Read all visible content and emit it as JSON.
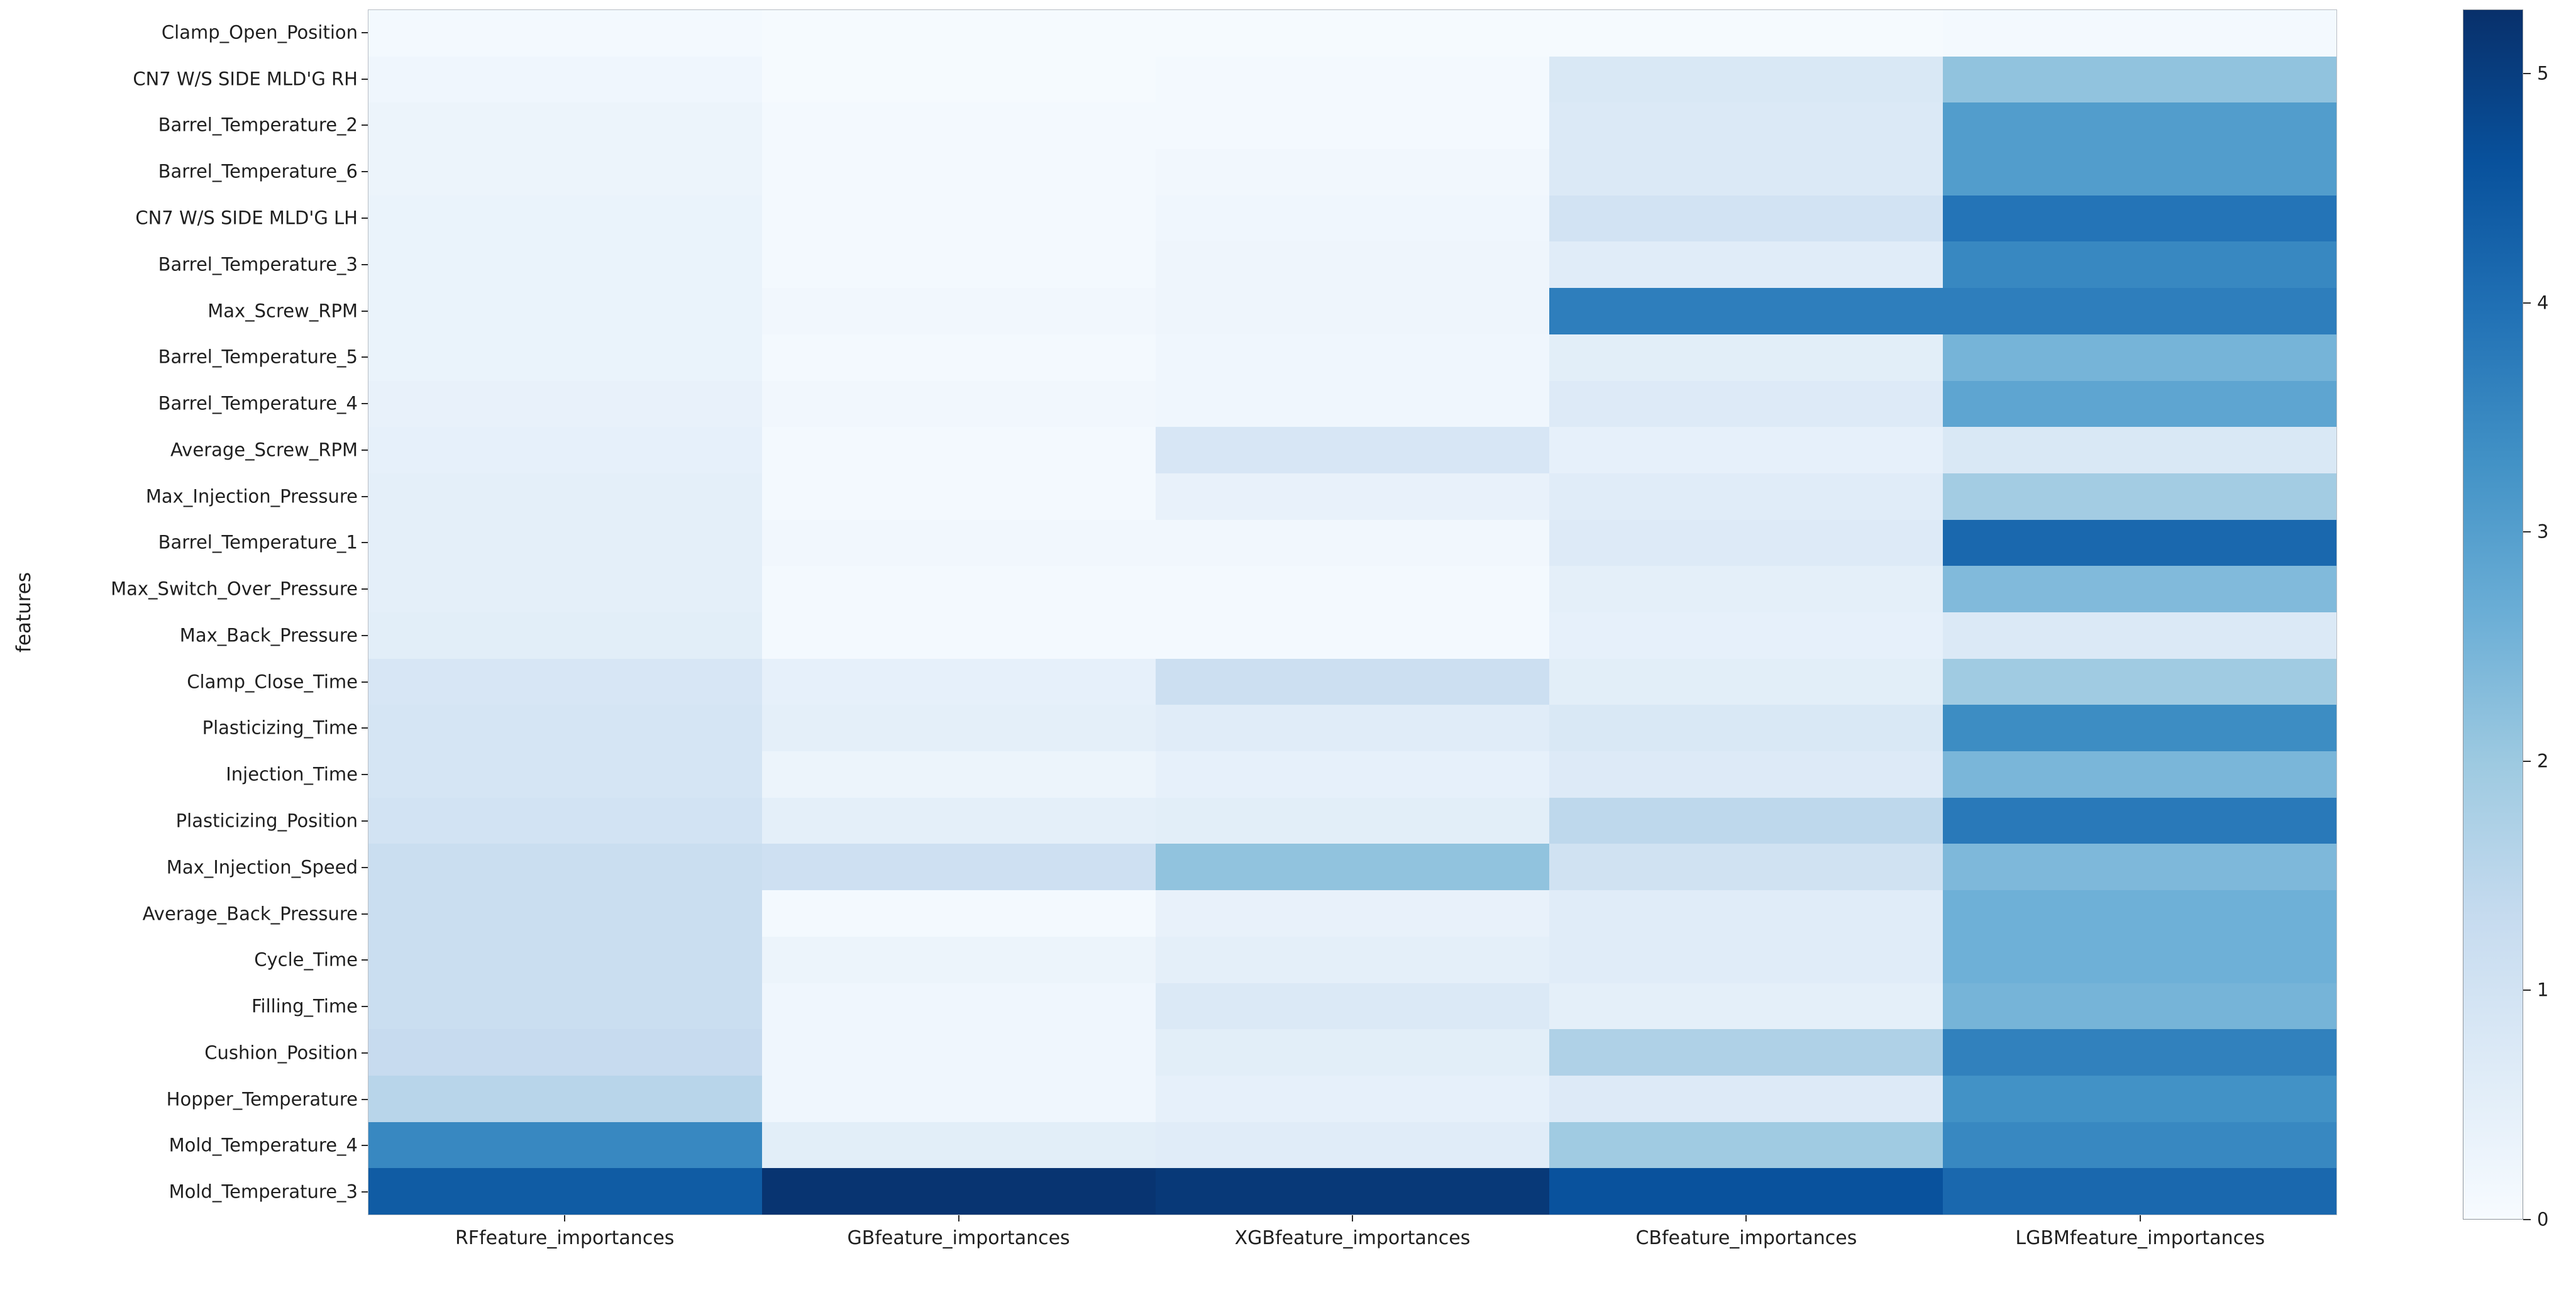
{
  "figure": {
    "background_color": "#ffffff",
    "text_color": "#1f1f1f"
  },
  "chart_data": {
    "type": "heatmap",
    "title": "",
    "xlabel": "",
    "ylabel": "features",
    "columns": [
      "RFfeature_importances",
      "GBfeature_importances",
      "XGBfeature_importances",
      "CBfeature_importances",
      "LGBMfeature_importances"
    ],
    "rows": [
      "Clamp_Open_Position",
      "CN7 W/S SIDE MLD'G RH",
      "Barrel_Temperature_2",
      "Barrel_Temperature_6",
      "CN7 W/S SIDE MLD'G LH",
      "Barrel_Temperature_3",
      "Max_Screw_RPM",
      "Barrel_Temperature_5",
      "Barrel_Temperature_4",
      "Average_Screw_RPM",
      "Max_Injection_Pressure",
      "Barrel_Temperature_1",
      "Max_Switch_Over_Pressure",
      "Max_Back_Pressure",
      "Clamp_Close_Time",
      "Plasticizing_Time",
      "Injection_Time",
      "Plasticizing_Position",
      "Max_Injection_Speed",
      "Average_Back_Pressure",
      "Cycle_Time",
      "Filling_Time",
      "Cushion_Position",
      "Hopper_Temperature",
      "Mold_Temperature_4",
      "Mold_Temperature_3"
    ],
    "values": [
      [
        0.1,
        0.05,
        0.05,
        0.05,
        0.1
      ],
      [
        0.2,
        0.05,
        0.1,
        0.8,
        2.15
      ],
      [
        0.3,
        0.1,
        0.1,
        0.75,
        3.05
      ],
      [
        0.3,
        0.1,
        0.15,
        0.75,
        3.05
      ],
      [
        0.35,
        0.1,
        0.2,
        1.0,
        3.9
      ],
      [
        0.35,
        0.1,
        0.25,
        0.6,
        3.5
      ],
      [
        0.35,
        0.15,
        0.25,
        3.7,
        3.7
      ],
      [
        0.35,
        0.1,
        0.2,
        0.55,
        2.5
      ],
      [
        0.4,
        0.15,
        0.2,
        0.7,
        2.85
      ],
      [
        0.45,
        0.1,
        0.85,
        0.45,
        0.8
      ],
      [
        0.5,
        0.1,
        0.4,
        0.6,
        1.9
      ],
      [
        0.5,
        0.15,
        0.15,
        0.7,
        4.15
      ],
      [
        0.5,
        0.1,
        0.1,
        0.5,
        2.35
      ],
      [
        0.55,
        0.1,
        0.1,
        0.45,
        0.75
      ],
      [
        0.85,
        0.45,
        1.15,
        0.55,
        1.95
      ],
      [
        0.9,
        0.5,
        0.6,
        0.8,
        3.4
      ],
      [
        0.9,
        0.3,
        0.45,
        0.7,
        2.45
      ],
      [
        1.0,
        0.5,
        0.55,
        1.45,
        3.8
      ],
      [
        1.2,
        1.1,
        2.15,
        1.05,
        2.4
      ],
      [
        1.2,
        0.1,
        0.4,
        0.6,
        2.6
      ],
      [
        1.2,
        0.3,
        0.5,
        0.6,
        2.6
      ],
      [
        1.2,
        0.2,
        0.75,
        0.5,
        2.5
      ],
      [
        1.3,
        0.2,
        0.55,
        1.7,
        3.65
      ],
      [
        1.55,
        0.2,
        0.45,
        0.7,
        3.3
      ],
      [
        3.5,
        0.55,
        0.6,
        1.95,
        3.5
      ],
      [
        4.4,
        5.2,
        5.1,
        4.6,
        4.15
      ]
    ],
    "vmin": 0,
    "vmax": 5.28,
    "grid": false,
    "colorbar": {
      "position": "right",
      "ticks": [
        "0",
        "1",
        "2",
        "3",
        "4",
        "5"
      ]
    },
    "colormap": {
      "name": "Blues",
      "anchors": [
        "#f7fbff",
        "#deebf7",
        "#c6dbef",
        "#9ecae1",
        "#6baed6",
        "#4292c6",
        "#2171b5",
        "#08519c",
        "#08306b"
      ]
    }
  }
}
